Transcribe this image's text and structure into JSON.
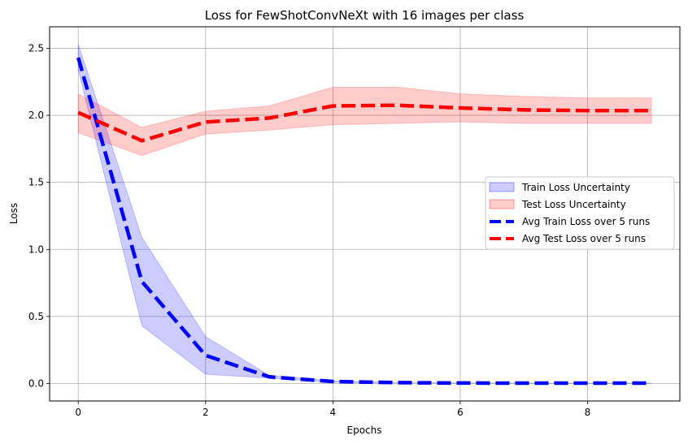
{
  "chart_data": {
    "type": "line",
    "title": "Loss for FewShotConvNeXt with 16 images per class",
    "xlabel": "Epochs",
    "ylabel": "Loss",
    "x": [
      0,
      1,
      2,
      3,
      4,
      5,
      6,
      7,
      8,
      9
    ],
    "xlim": [
      -0.45,
      9.45
    ],
    "ylim": [
      -0.13,
      2.66
    ],
    "xticks": [
      "0",
      "2",
      "4",
      "6",
      "8"
    ],
    "yticks": [
      "0.0",
      "0.5",
      "1.0",
      "1.5",
      "2.0",
      "2.5"
    ],
    "grid": true,
    "legend_position": "center-right",
    "bands": [
      {
        "name": "Train Loss Uncertainty",
        "color": "#0000ff",
        "lower": [
          2.34,
          0.43,
          0.07,
          0.04,
          0.01,
          0.005,
          0.003,
          0.002,
          0.002,
          0.002
        ],
        "upper": [
          2.53,
          1.09,
          0.35,
          0.06,
          0.02,
          0.008,
          0.005,
          0.004,
          0.003,
          0.003
        ]
      },
      {
        "name": "Test Loss Uncertainty",
        "color": "#ff0000",
        "lower": [
          1.87,
          1.7,
          1.86,
          1.89,
          1.93,
          1.94,
          1.95,
          1.94,
          1.94,
          1.94
        ],
        "upper": [
          2.16,
          1.91,
          2.03,
          2.07,
          2.21,
          2.21,
          2.16,
          2.14,
          2.13,
          2.13
        ]
      }
    ],
    "series": [
      {
        "name": "Avg Train Loss over 5 runs",
        "color": "#0000ff",
        "values": [
          2.43,
          0.76,
          0.21,
          0.05,
          0.015,
          0.007,
          0.004,
          0.003,
          0.003,
          0.003
        ]
      },
      {
        "name": "Avg Test Loss over 5 runs",
        "color": "#ff0000",
        "values": [
          2.02,
          1.81,
          1.95,
          1.98,
          2.07,
          2.075,
          2.055,
          2.04,
          2.035,
          2.035
        ]
      }
    ]
  }
}
